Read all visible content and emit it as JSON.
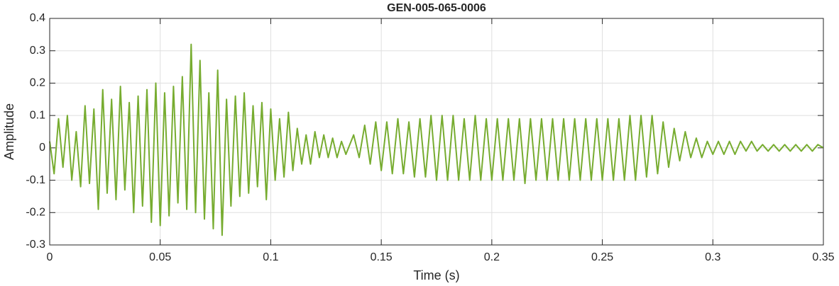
{
  "chart_data": {
    "type": "line",
    "title": "GEN-005-065-0006",
    "xlabel": "Time (s)",
    "ylabel": "Amplitude",
    "xlim": [
      0,
      0.35
    ],
    "ylim": [
      -0.3,
      0.4
    ],
    "xticks": [
      0,
      0.05,
      0.1,
      0.15,
      0.2,
      0.25,
      0.3,
      0.35
    ],
    "yticks": [
      -0.3,
      -0.2,
      -0.1,
      0,
      0.1,
      0.2,
      0.3,
      0.4
    ],
    "grid": true,
    "x": [
      0,
      0.002,
      0.004,
      0.006,
      0.008,
      0.01,
      0.012,
      0.014,
      0.016,
      0.018,
      0.02,
      0.022,
      0.024,
      0.026,
      0.028,
      0.03,
      0.032,
      0.034,
      0.036,
      0.038,
      0.04,
      0.042,
      0.044,
      0.046,
      0.048,
      0.05,
      0.052,
      0.054,
      0.056,
      0.058,
      0.06,
      0.062,
      0.064,
      0.066,
      0.068,
      0.07,
      0.072,
      0.074,
      0.076,
      0.078,
      0.08,
      0.082,
      0.084,
      0.086,
      0.088,
      0.09,
      0.092,
      0.094,
      0.096,
      0.098,
      0.1,
      0.102,
      0.104,
      0.106,
      0.108,
      0.11,
      0.112,
      0.114,
      0.116,
      0.118,
      0.12,
      0.122,
      0.124,
      0.126,
      0.128,
      0.13,
      0.132,
      0.134,
      0.1375,
      0.14,
      0.1425,
      0.145,
      0.1475,
      0.15,
      0.1525,
      0.155,
      0.1575,
      0.16,
      0.1625,
      0.165,
      0.1675,
      0.17,
      0.1725,
      0.175,
      0.1775,
      0.18,
      0.1825,
      0.185,
      0.1875,
      0.19,
      0.1925,
      0.195,
      0.1975,
      0.2,
      0.2025,
      0.205,
      0.2075,
      0.21,
      0.2125,
      0.215,
      0.2175,
      0.22,
      0.2225,
      0.225,
      0.2275,
      0.23,
      0.2325,
      0.235,
      0.2375,
      0.24,
      0.2425,
      0.245,
      0.2475,
      0.25,
      0.2525,
      0.255,
      0.2575,
      0.26,
      0.2625,
      0.265,
      0.2675,
      0.27,
      0.2725,
      0.275,
      0.2775,
      0.28,
      0.2825,
      0.285,
      0.2875,
      0.29,
      0.2925,
      0.295,
      0.2975,
      0.3,
      0.3025,
      0.305,
      0.3075,
      0.31,
      0.3125,
      0.315,
      0.3175,
      0.32,
      0.3225,
      0.325,
      0.3275,
      0.33,
      0.3325,
      0.335,
      0.3375,
      0.34,
      0.3425,
      0.345,
      0.3475,
      0.35
    ],
    "series": [
      {
        "color": "#77ac30",
        "values": [
          0.02,
          -0.08,
          0.09,
          -0.06,
          0.1,
          -0.1,
          0.05,
          -0.12,
          0.13,
          -0.11,
          0.12,
          -0.19,
          0.18,
          -0.14,
          0.15,
          -0.16,
          0.19,
          -0.13,
          0.14,
          -0.2,
          0.16,
          -0.18,
          0.18,
          -0.23,
          0.2,
          -0.24,
          0.17,
          -0.21,
          0.19,
          -0.17,
          0.22,
          -0.19,
          0.32,
          -0.2,
          0.27,
          -0.22,
          0.17,
          -0.25,
          0.24,
          -0.27,
          0.15,
          -0.18,
          0.16,
          -0.15,
          0.17,
          -0.14,
          0.13,
          -0.12,
          0.14,
          -0.16,
          0.12,
          -0.1,
          0.09,
          -0.09,
          0.11,
          -0.07,
          0.06,
          -0.05,
          0.04,
          -0.05,
          0.05,
          -0.03,
          0.04,
          -0.03,
          0.03,
          -0.03,
          0.02,
          -0.02,
          0.04,
          -0.03,
          0.07,
          -0.05,
          0.08,
          -0.07,
          0.08,
          -0.08,
          0.09,
          -0.08,
          0.08,
          -0.09,
          0.09,
          -0.09,
          0.1,
          -0.1,
          0.1,
          -0.1,
          0.1,
          -0.1,
          0.09,
          -0.1,
          0.1,
          -0.1,
          0.09,
          -0.1,
          0.09,
          -0.1,
          0.09,
          -0.1,
          0.09,
          -0.11,
          0.09,
          -0.1,
          0.09,
          -0.1,
          0.09,
          -0.1,
          0.09,
          -0.1,
          0.09,
          -0.1,
          0.09,
          -0.1,
          0.09,
          -0.1,
          0.09,
          -0.1,
          0.09,
          -0.1,
          0.1,
          -0.1,
          0.1,
          -0.09,
          0.1,
          -0.08,
          0.08,
          -0.06,
          0.06,
          -0.04,
          0.05,
          -0.03,
          0.03,
          -0.03,
          0.02,
          -0.02,
          0.02,
          -0.02,
          0.02,
          -0.02,
          0.02,
          -0.01,
          0.02,
          -0.01,
          0.01,
          -0.01,
          0.01,
          -0.01,
          0.01,
          -0.01,
          0.01,
          -0.01,
          0.01,
          -0.01,
          0.01,
          0
        ]
      }
    ]
  }
}
